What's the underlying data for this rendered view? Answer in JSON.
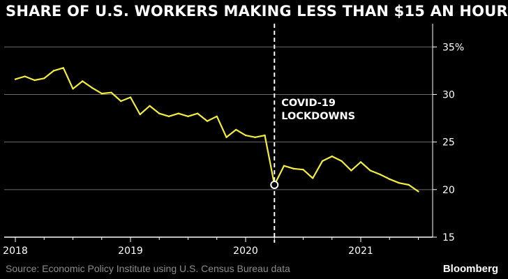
{
  "chart_data": {
    "type": "line",
    "title": "SHARE OF U.S. WORKERS MAKING LESS THAN $15 AN HOUR",
    "source": "Source: Economic Policy Institute using U.S. Census Bureau data",
    "brand": "Bloomberg",
    "xlim": [
      2018.0,
      2021.6
    ],
    "ylim": [
      15,
      37
    ],
    "x_ticks": [
      {
        "value": 2018,
        "label": "2018"
      },
      {
        "value": 2019,
        "label": "2019"
      },
      {
        "value": 2020,
        "label": "2020"
      },
      {
        "value": 2021,
        "label": "2021"
      }
    ],
    "y_ticks": [
      {
        "value": 35,
        "label": "35%"
      },
      {
        "value": 30,
        "label": "30"
      },
      {
        "value": 25,
        "label": "25"
      },
      {
        "value": 20,
        "label": "20"
      },
      {
        "value": 15,
        "label": "15"
      }
    ],
    "grid": true,
    "line_color": "#f2ee3a",
    "series": [
      {
        "x": [
          2018.0,
          2018.0833,
          2018.1667,
          2018.25,
          2018.3333,
          2018.4167,
          2018.5,
          2018.5833,
          2018.6667,
          2018.75,
          2018.8333,
          2018.9167,
          2019.0,
          2019.0833,
          2019.1667,
          2019.25,
          2019.3333,
          2019.4167,
          2019.5,
          2019.5833,
          2019.6667,
          2019.75,
          2019.8333,
          2019.9167,
          2020.0,
          2020.0833,
          2020.1667,
          2020.25,
          2020.3333,
          2020.4167,
          2020.5,
          2020.5833,
          2020.6667,
          2020.75,
          2020.8333,
          2020.9167,
          2021.0,
          2021.0833,
          2021.1667,
          2021.25,
          2021.3333,
          2021.4167,
          2021.5
        ],
        "values": [
          31.6,
          31.9,
          31.5,
          31.7,
          32.5,
          32.8,
          30.6,
          31.4,
          30.7,
          30.1,
          30.2,
          29.3,
          29.7,
          27.9,
          28.8,
          28.0,
          27.7,
          28.0,
          27.7,
          28.0,
          27.2,
          27.7,
          25.5,
          26.3,
          25.7,
          25.5,
          25.7,
          20.5,
          22.5,
          22.2,
          22.1,
          21.2,
          23.0,
          23.5,
          23.0,
          22.0,
          22.9,
          22.0,
          21.6,
          21.1,
          20.7,
          20.5,
          19.8
        ]
      }
    ],
    "marker": {
      "x": 2020.25,
      "y": 20.5
    },
    "event_line": {
      "x": 2020.25,
      "label_lines": [
        "COVID-19",
        "LOCKDOWNS"
      ]
    }
  }
}
